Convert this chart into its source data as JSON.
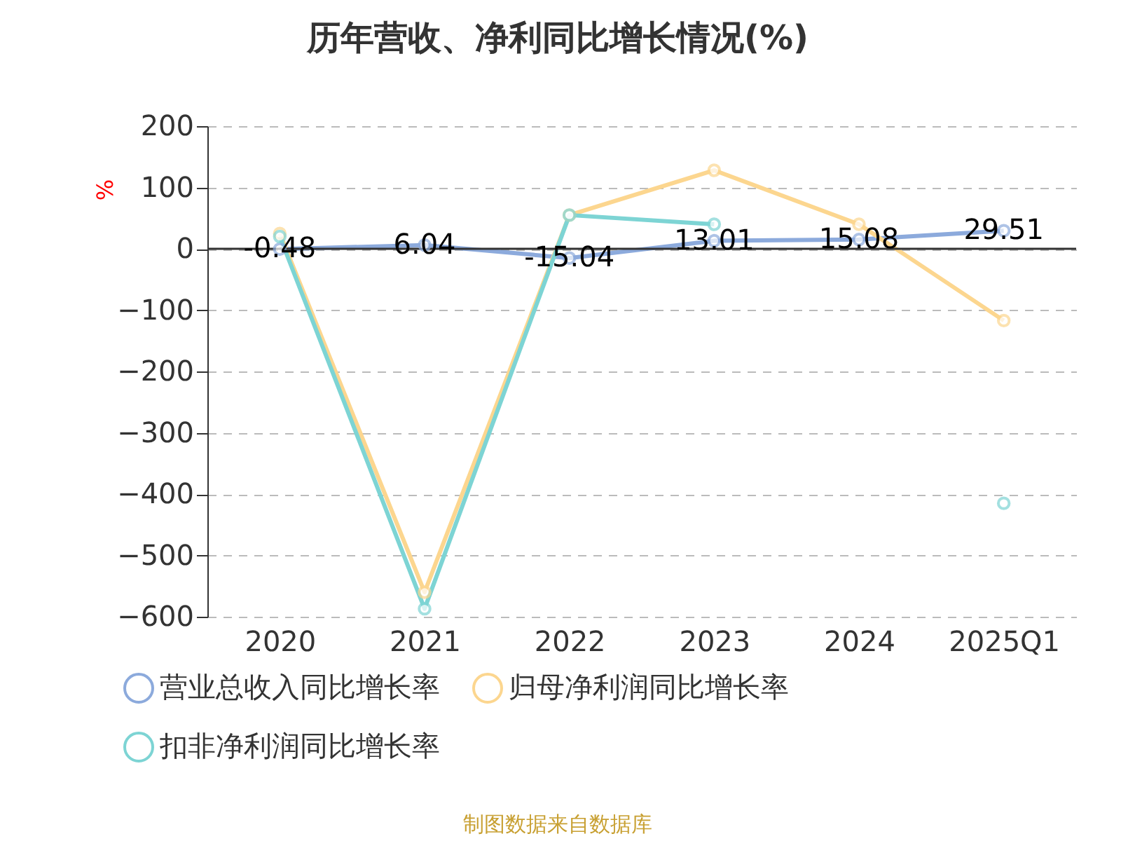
{
  "chart_data": {
    "type": "line",
    "title": "历年营收、净利同比增长情况(%)",
    "ylabel": "%",
    "categories": [
      "2020",
      "2021",
      "2022",
      "2023",
      "2024",
      "2025Q1"
    ],
    "series": [
      {
        "name": "营业总收入同比增长率",
        "color": "#8caadc",
        "values": [
          -0.48,
          6.04,
          -15.04,
          13.01,
          15.08,
          29.51
        ],
        "value_labels": [
          "-0.48",
          "6.04",
          "-15.04",
          "13.01",
          "15.08",
          "29.51"
        ]
      },
      {
        "name": "归母净利润同比增长率",
        "color": "#fcd68f",
        "values": [
          25,
          -560,
          55,
          128,
          40,
          -117
        ]
      },
      {
        "name": "扣非净利润同比增长率",
        "color": "#7dd4d4",
        "values": [
          20,
          -587,
          55,
          40,
          null,
          -415
        ]
      }
    ],
    "ylim": [
      -600,
      200
    ],
    "yticks": [
      -600,
      -500,
      -400,
      -300,
      -200,
      -100,
      0,
      100,
      200
    ],
    "grid": "y",
    "legend": "bottom",
    "marker": "circle",
    "line_style": "solid",
    "annotations": [
      "制图数据来自数据库"
    ]
  }
}
